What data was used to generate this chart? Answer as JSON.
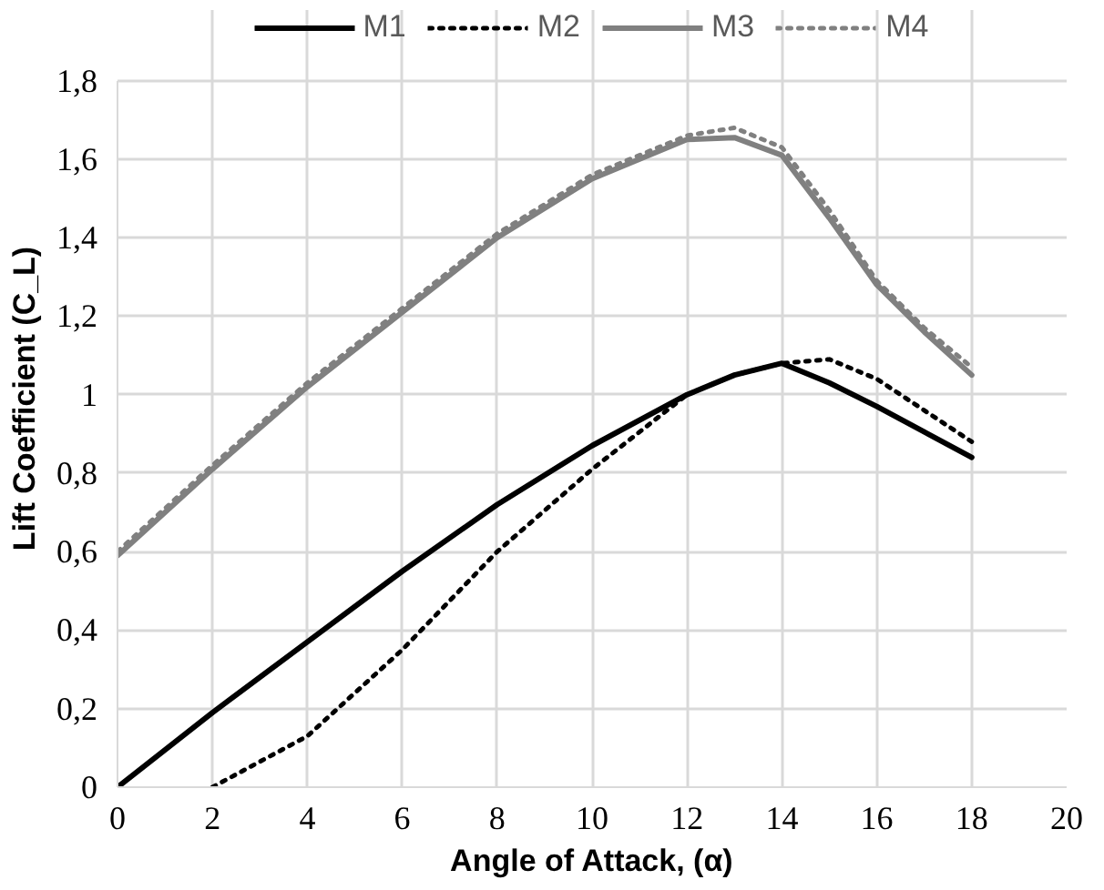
{
  "chart_data": {
    "type": "line",
    "xlabel": "Angle of Attack, (α)",
    "ylabel": "Lift Coefficient (C_L)",
    "xlim": [
      0,
      20
    ],
    "xticks": [
      0,
      2,
      4,
      6,
      8,
      10,
      12,
      14,
      16,
      18,
      20
    ],
    "ylim": [
      0,
      1.8
    ],
    "yticks": [
      {
        "value": 0,
        "label": "0"
      },
      {
        "value": 0.2,
        "label": "0,2"
      },
      {
        "value": 0.4,
        "label": "0,4"
      },
      {
        "value": 0.6,
        "label": "0,6"
      },
      {
        "value": 0.8,
        "label": "0,8"
      },
      {
        "value": 1,
        "label": "1"
      },
      {
        "value": 1.2,
        "label": "1,2"
      },
      {
        "value": 1.4,
        "label": "1,4"
      },
      {
        "value": 1.6,
        "label": "1,6"
      },
      {
        "value": 1.8,
        "label": "1,8"
      }
    ],
    "grid": true,
    "legend": "top",
    "series": [
      {
        "name": "M1",
        "color": "#000000",
        "line_style": "solid",
        "x": [
          0,
          2,
          4,
          6,
          8,
          10,
          12,
          13,
          14,
          15,
          16,
          18
        ],
        "values": [
          0,
          0.19,
          0.37,
          0.55,
          0.72,
          0.87,
          1.0,
          1.05,
          1.08,
          1.03,
          0.97,
          0.84
        ]
      },
      {
        "name": "M2",
        "color": "#000000",
        "line_style": "dotted",
        "x": [
          2,
          4,
          6,
          8,
          10,
          12,
          13,
          14,
          15,
          16,
          18
        ],
        "values": [
          0,
          0.13,
          0.35,
          0.6,
          0.81,
          1.0,
          1.05,
          1.08,
          1.09,
          1.04,
          0.88
        ]
      },
      {
        "name": "M3",
        "color": "#808080",
        "line_style": "solid",
        "x": [
          0,
          2,
          4,
          6,
          8,
          10,
          12,
          13,
          14,
          15,
          16,
          17,
          18
        ],
        "values": [
          0.59,
          0.81,
          1.02,
          1.21,
          1.4,
          1.55,
          1.65,
          1.655,
          1.61,
          1.45,
          1.28,
          1.16,
          1.05
        ]
      },
      {
        "name": "M4",
        "color": "#808080",
        "line_style": "dotted",
        "x": [
          0,
          2,
          4,
          6,
          8,
          10,
          12,
          13,
          14,
          15,
          16,
          17,
          18
        ],
        "values": [
          0.6,
          0.82,
          1.03,
          1.22,
          1.41,
          1.56,
          1.66,
          1.68,
          1.63,
          1.47,
          1.29,
          1.17,
          1.07
        ]
      }
    ]
  }
}
